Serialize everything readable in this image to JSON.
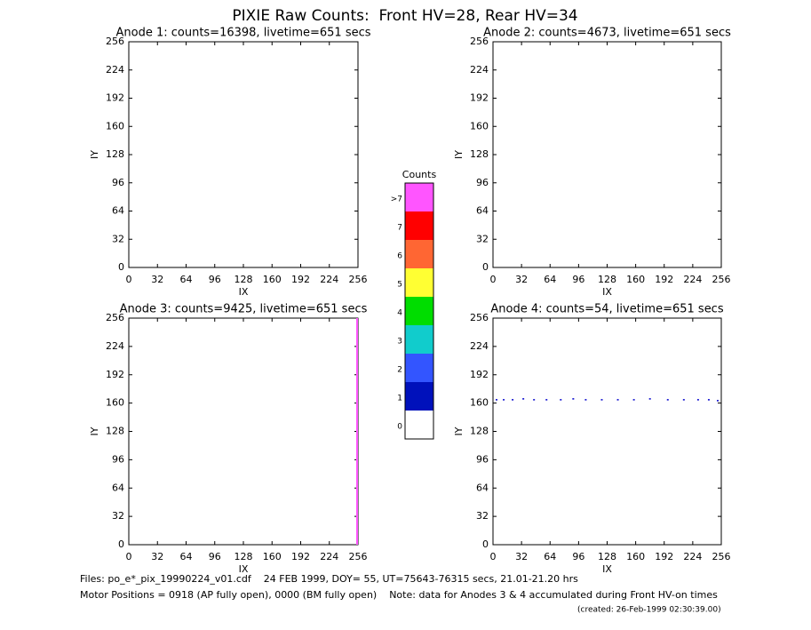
{
  "title": "PIXIE Raw Counts:  Front HV=28, Rear HV=34",
  "chart_data": [
    {
      "type": "scatter",
      "title": "Anode 1: counts=16398, livetime=651 secs",
      "xlabel": "IX",
      "ylabel": "IY",
      "xlim": [
        0,
        256
      ],
      "ylim": [
        0,
        256
      ],
      "xticks": [
        0,
        32,
        64,
        96,
        128,
        160,
        192,
        224,
        256
      ],
      "yticks": [
        0,
        32,
        64,
        96,
        128,
        160,
        192,
        224,
        256
      ]
    },
    {
      "type": "scatter",
      "title": "Anode 2: counts=4673, livetime=651 secs",
      "xlabel": "IX",
      "ylabel": "IY",
      "xlim": [
        0,
        256
      ],
      "ylim": [
        0,
        256
      ],
      "xticks": [
        0,
        32,
        64,
        96,
        128,
        160,
        192,
        224,
        256
      ],
      "yticks": [
        0,
        32,
        64,
        96,
        128,
        160,
        192,
        224,
        256
      ]
    },
    {
      "type": "scatter",
      "title": "Anode 3: counts=9425, livetime=651 secs",
      "xlabel": "IX",
      "ylabel": "IY",
      "xlim": [
        0,
        256
      ],
      "ylim": [
        0,
        256
      ],
      "xticks": [
        0,
        32,
        64,
        96,
        128,
        160,
        192,
        224,
        256
      ],
      "yticks": [
        0,
        32,
        64,
        96,
        128,
        160,
        192,
        224,
        256
      ],
      "series": [
        {
          "color": "#ff55ff",
          "mode": "line",
          "x": [
            255,
            255
          ],
          "values": [
            0,
            256
          ]
        }
      ]
    },
    {
      "type": "scatter",
      "title": "Anode 4: counts=54, livetime=651 secs",
      "xlabel": "IX",
      "ylabel": "IY",
      "xlim": [
        0,
        256
      ],
      "ylim": [
        0,
        256
      ],
      "xticks": [
        0,
        32,
        64,
        96,
        128,
        160,
        192,
        224,
        256
      ],
      "yticks": [
        0,
        32,
        64,
        96,
        128,
        160,
        192,
        224,
        256
      ],
      "series": [
        {
          "color": "#0000cc",
          "mode": "points",
          "x": [
            4,
            12,
            22,
            34,
            46,
            60,
            76,
            90,
            104,
            122,
            140,
            158,
            176,
            196,
            214,
            230,
            242,
            252
          ],
          "values": [
            164,
            164,
            164,
            165,
            164,
            164,
            164,
            165,
            164,
            164,
            164,
            164,
            165,
            164,
            164,
            164,
            164,
            163
          ]
        }
      ]
    },
    {
      "type": "colorbar",
      "title": "Counts",
      "categories": [
        ">7",
        "7",
        "6",
        "5",
        "4",
        "3",
        "2",
        "1",
        "0"
      ],
      "colors": [
        "#ff55ff",
        "#ff0000",
        "#ff6633",
        "#ffff33",
        "#00dd00",
        "#11cccc",
        "#3355ff",
        "#0011bb",
        "#ffffff"
      ]
    }
  ],
  "footer": {
    "line1": "Files: po_e*_pix_19990224_v01.cdf    24 FEB 1999, DOY= 55, UT=75643-76315 secs, 21.01-21.20 hrs",
    "line2": "Motor Positions = 0918 (AP fully open), 0000 (BM fully open)    Note: data for Anodes 3 & 4 accumulated during Front HV-on times",
    "created": "(created: 26-Feb-1999 02:30:39.00)"
  }
}
